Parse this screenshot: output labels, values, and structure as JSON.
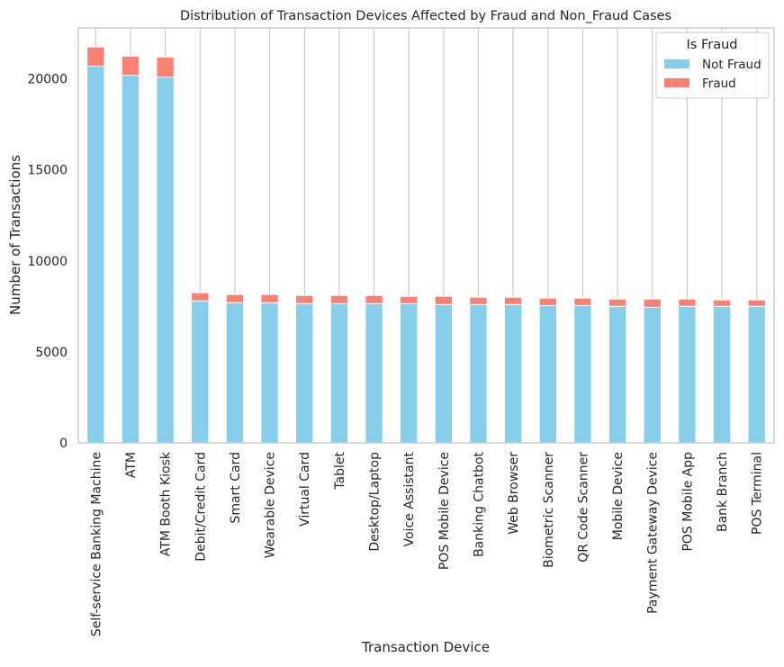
{
  "chart_data": {
    "type": "bar",
    "stacked": true,
    "title": "Distribution of Transaction Devices Affected by Fraud and Non_Fraud Cases",
    "xlabel": "Transaction Device",
    "ylabel": "Number of Transactions",
    "ylim": [
      0,
      22800
    ],
    "yticks": [
      0,
      5000,
      10000,
      15000,
      20000
    ],
    "grid": "vertical",
    "legend": {
      "title": "Is Fraud",
      "placement": "top-right",
      "entries": [
        "Not Fraud",
        "Fraud"
      ]
    },
    "categories": [
      "Self-service Banking Machine",
      "ATM",
      "ATM Booth Kiosk",
      "Debit/Credit Card",
      "Smart Card",
      "Wearable Device",
      "Virtual Card",
      "Tablet",
      "Desktop/Laptop",
      "Voice Assistant",
      "POS Mobile Device",
      "Banking Chatbot",
      "Web Browser",
      "Biometric Scanner",
      "QR Code Scanner",
      "Mobile Device",
      "Payment Gateway Device",
      "POS Mobile App",
      "Bank Branch",
      "POS Terminal"
    ],
    "series": [
      {
        "name": "Not Fraud",
        "color": "#87ceeb",
        "values": [
          20700,
          20200,
          20100,
          7800,
          7700,
          7700,
          7650,
          7650,
          7650,
          7650,
          7600,
          7600,
          7600,
          7550,
          7550,
          7500,
          7450,
          7500,
          7500,
          7500
        ]
      },
      {
        "name": "Fraud",
        "color": "#fa8072",
        "values": [
          1050,
          1050,
          1100,
          450,
          450,
          450,
          450,
          450,
          450,
          400,
          450,
          400,
          400,
          400,
          400,
          400,
          450,
          400,
          350,
          350
        ]
      }
    ]
  }
}
